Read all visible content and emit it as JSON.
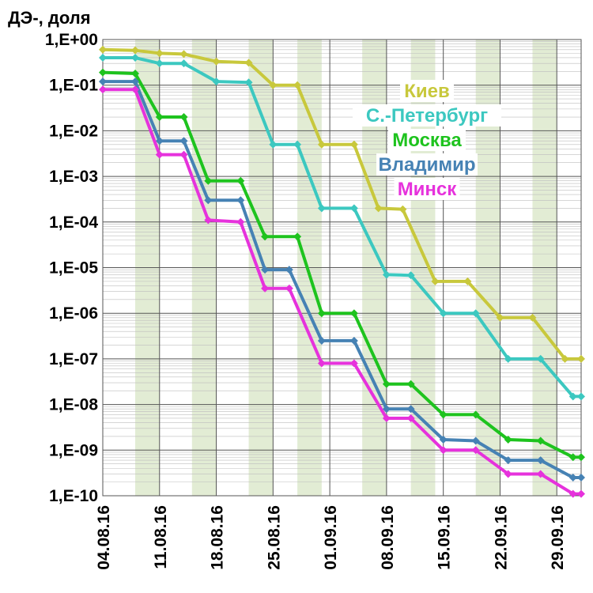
{
  "chart_data": {
    "type": "line",
    "ylabel": "ДЭ-, доля",
    "yscale": "log",
    "ylim": [
      1e-10,
      1
    ],
    "y_tick_labels": [
      "1,E+00",
      "1,E-01",
      "1,E-02",
      "1,E-03",
      "1,E-04",
      "1,E-05",
      "1,E-06",
      "1,E-07",
      "1,E-08",
      "1,E-09",
      "1,E-10"
    ],
    "x_range": [
      "2016-08-04",
      "2016-10-02"
    ],
    "x_tick_labels": [
      "04.08.16",
      "11.08.16",
      "18.08.16",
      "25.08.16",
      "01.09.16",
      "08.09.16",
      "15.09.16",
      "22.09.16",
      "29.09.16"
    ],
    "x_tick_dates": [
      "2016-08-04",
      "2016-08-11",
      "2016-08-18",
      "2016-08-25",
      "2016-09-01",
      "2016-09-08",
      "2016-09-15",
      "2016-09-22",
      "2016-09-29"
    ],
    "weekend_bands": [
      [
        "2016-08-08",
        "2016-08-11"
      ],
      [
        "2016-08-15",
        "2016-08-18"
      ],
      [
        "2016-08-22",
        "2016-08-25"
      ],
      [
        "2016-08-28",
        "2016-08-31"
      ],
      [
        "2016-09-05",
        "2016-09-08"
      ],
      [
        "2016-09-11",
        "2016-09-14"
      ],
      [
        "2016-09-19",
        "2016-09-22"
      ],
      [
        "2016-09-26",
        "2016-09-29"
      ]
    ],
    "legend_position": "top-right",
    "grid": true,
    "series": [
      {
        "name": "Киев",
        "color": "#c8c83c",
        "points": [
          [
            "2016-08-04",
            0.6
          ],
          [
            "2016-08-08",
            0.58
          ],
          [
            "2016-08-11",
            0.5
          ],
          [
            "2016-08-14",
            0.48
          ],
          [
            "2016-08-18",
            0.33
          ],
          [
            "2016-08-22",
            0.31
          ],
          [
            "2016-08-25",
            0.1
          ],
          [
            "2016-08-28",
            0.1
          ],
          [
            "2016-08-31",
            0.005
          ],
          [
            "2016-09-04",
            0.005
          ],
          [
            "2016-09-07",
            0.0002
          ],
          [
            "2016-09-10",
            0.00019
          ],
          [
            "2016-09-14",
            5e-06
          ],
          [
            "2016-09-18",
            5e-06
          ],
          [
            "2016-09-22",
            8e-07
          ],
          [
            "2016-09-26",
            8e-07
          ],
          [
            "2016-09-30",
            1e-07
          ],
          [
            "2016-10-02",
            1e-07
          ]
        ]
      },
      {
        "name": "С.-Петербург",
        "color": "#3cc8c0",
        "points": [
          [
            "2016-08-04",
            0.4
          ],
          [
            "2016-08-08",
            0.4
          ],
          [
            "2016-08-11",
            0.3
          ],
          [
            "2016-08-14",
            0.3
          ],
          [
            "2016-08-18",
            0.12
          ],
          [
            "2016-08-22",
            0.115
          ],
          [
            "2016-08-25",
            0.005
          ],
          [
            "2016-08-28",
            0.005
          ],
          [
            "2016-08-31",
            0.0002
          ],
          [
            "2016-09-04",
            0.0002
          ],
          [
            "2016-09-08",
            7e-06
          ],
          [
            "2016-09-11",
            6.8e-06
          ],
          [
            "2016-09-15",
            1e-06
          ],
          [
            "2016-09-19",
            1e-06
          ],
          [
            "2016-09-23",
            1e-07
          ],
          [
            "2016-09-27",
            1e-07
          ],
          [
            "2016-10-01",
            1.5e-08
          ],
          [
            "2016-10-02",
            1.5e-08
          ]
        ]
      },
      {
        "name": "Москва",
        "color": "#1ec31e",
        "points": [
          [
            "2016-08-04",
            0.19
          ],
          [
            "2016-08-08",
            0.18
          ],
          [
            "2016-08-11",
            0.02
          ],
          [
            "2016-08-14",
            0.02
          ],
          [
            "2016-08-17",
            0.0008
          ],
          [
            "2016-08-21",
            0.0008
          ],
          [
            "2016-08-24",
            4.8e-05
          ],
          [
            "2016-08-28",
            4.8e-05
          ],
          [
            "2016-08-31",
            1e-06
          ],
          [
            "2016-09-04",
            1e-06
          ],
          [
            "2016-09-08",
            2.8e-08
          ],
          [
            "2016-09-11",
            2.8e-08
          ],
          [
            "2016-09-15",
            6e-09
          ],
          [
            "2016-09-19",
            6e-09
          ],
          [
            "2016-09-23",
            1.7e-09
          ],
          [
            "2016-09-27",
            1.6e-09
          ],
          [
            "2016-10-01",
            7e-10
          ],
          [
            "2016-10-02",
            7e-10
          ]
        ]
      },
      {
        "name": "Владимир",
        "color": "#4682b4",
        "points": [
          [
            "2016-08-04",
            0.12
          ],
          [
            "2016-08-08",
            0.12
          ],
          [
            "2016-08-11",
            0.006
          ],
          [
            "2016-08-14",
            0.006
          ],
          [
            "2016-08-17",
            0.0003
          ],
          [
            "2016-08-21",
            0.0003
          ],
          [
            "2016-08-24",
            9e-06
          ],
          [
            "2016-08-27",
            9e-06
          ],
          [
            "2016-08-31",
            2.5e-07
          ],
          [
            "2016-09-04",
            2.5e-07
          ],
          [
            "2016-09-08",
            8e-09
          ],
          [
            "2016-09-11",
            8e-09
          ],
          [
            "2016-09-15",
            1.7e-09
          ],
          [
            "2016-09-19",
            1.6e-09
          ],
          [
            "2016-09-23",
            6e-10
          ],
          [
            "2016-09-27",
            6e-10
          ],
          [
            "2016-10-01",
            2.5e-10
          ],
          [
            "2016-10-02",
            2.5e-10
          ]
        ]
      },
      {
        "name": "Минск",
        "color": "#e632dc",
        "points": [
          [
            "2016-08-04",
            0.08
          ],
          [
            "2016-08-08",
            0.08
          ],
          [
            "2016-08-11",
            0.003
          ],
          [
            "2016-08-14",
            0.003
          ],
          [
            "2016-08-17",
            0.00011
          ],
          [
            "2016-08-21",
            0.0001
          ],
          [
            "2016-08-24",
            3.5e-06
          ],
          [
            "2016-08-27",
            3.5e-06
          ],
          [
            "2016-08-31",
            8e-08
          ],
          [
            "2016-09-04",
            8e-08
          ],
          [
            "2016-09-08",
            5e-09
          ],
          [
            "2016-09-11",
            5e-09
          ],
          [
            "2016-09-15",
            1e-09
          ],
          [
            "2016-09-19",
            1e-09
          ],
          [
            "2016-09-23",
            3e-10
          ],
          [
            "2016-09-27",
            3e-10
          ],
          [
            "2016-10-01",
            1.1e-10
          ],
          [
            "2016-10-02",
            1.1e-10
          ]
        ]
      }
    ]
  }
}
